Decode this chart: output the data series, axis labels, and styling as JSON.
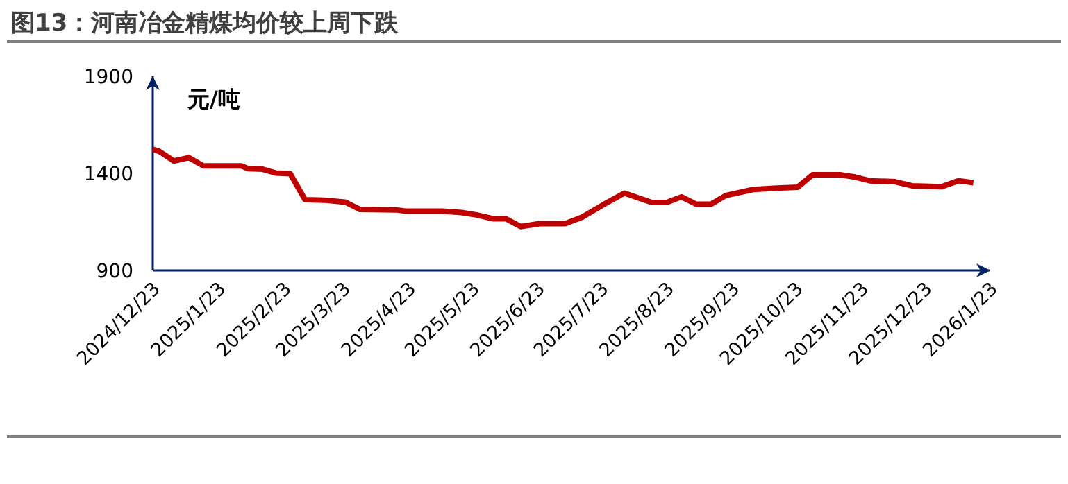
{
  "chart_data": {
    "type": "line",
    "title": "图13：河南冶金精煤均价较上周下跌",
    "ylabel": "元/吨",
    "color": "#c00000",
    "x": [
      "2024-12-23",
      "2024-12-26",
      "2025-01-02",
      "2025-01-09",
      "2025-01-16",
      "2025-02-03",
      "2025-02-06",
      "2025-02-13",
      "2025-02-19",
      "2025-02-26",
      "2025-03-05",
      "2025-03-14",
      "2025-03-24",
      "2025-03-31",
      "2025-04-17",
      "2025-04-22",
      "2025-05-09",
      "2025-05-18",
      "2025-05-25",
      "2025-06-02",
      "2025-06-08",
      "2025-06-15",
      "2025-06-24",
      "2025-07-06",
      "2025-07-14",
      "2025-07-24",
      "2025-08-03",
      "2025-08-16",
      "2025-08-23",
      "2025-08-30",
      "2025-09-06",
      "2025-09-13",
      "2025-09-20",
      "2025-10-03",
      "2025-10-14",
      "2025-10-24",
      "2025-10-31",
      "2025-11-13",
      "2025-11-20",
      "2025-11-27",
      "2025-12-09",
      "2025-12-17",
      "2025-12-31",
      "2026-01-08",
      "2026-01-15"
    ],
    "values": [
      1524,
      1514,
      1464,
      1481,
      1438,
      1438,
      1424,
      1421,
      1402,
      1398,
      1264,
      1262,
      1252,
      1214,
      1212,
      1205,
      1205,
      1198,
      1186,
      1166,
      1166,
      1126,
      1141,
      1141,
      1174,
      1238,
      1298,
      1250,
      1250,
      1279,
      1241,
      1241,
      1286,
      1317,
      1324,
      1329,
      1393,
      1393,
      1381,
      1362,
      1357,
      1336,
      1331,
      1362,
      1352
    ],
    "xlim": [
      "2024-12-23",
      "2026-01-23"
    ],
    "xticks": [
      {
        "value": "2024-12-23",
        "label": "2024/12/23"
      },
      {
        "value": "2025-01-23",
        "label": "2025/1/23"
      },
      {
        "value": "2025-02-23",
        "label": "2025/2/23"
      },
      {
        "value": "2025-03-23",
        "label": "2025/3/23"
      },
      {
        "value": "2025-04-23",
        "label": "2025/4/23"
      },
      {
        "value": "2025-05-23",
        "label": "2025/5/23"
      },
      {
        "value": "2025-06-23",
        "label": "2025/6/23"
      },
      {
        "value": "2025-07-23",
        "label": "2025/7/23"
      },
      {
        "value": "2025-08-23",
        "label": "2025/8/23"
      },
      {
        "value": "2025-09-23",
        "label": "2025/9/23"
      },
      {
        "value": "2025-10-23",
        "label": "2025/10/23"
      },
      {
        "value": "2025-11-23",
        "label": "2025/11/23"
      },
      {
        "value": "2025-12-23",
        "label": "2025/12/23"
      },
      {
        "value": "2026-01-23",
        "label": "2026/1/23"
      }
    ],
    "ylim": [
      900,
      1900
    ],
    "yticks": [
      900,
      1400,
      1900
    ]
  }
}
